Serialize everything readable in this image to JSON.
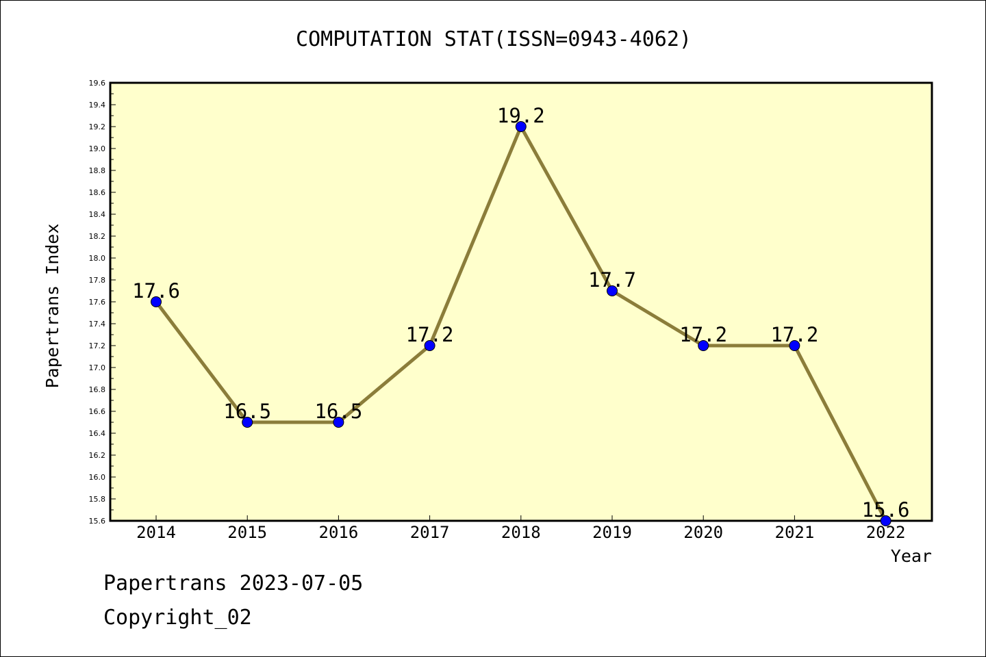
{
  "chart_data": {
    "type": "line",
    "title": "COMPUTATION STAT(ISSN=0943-4062)",
    "xlabel": "Year",
    "ylabel": "Papertrans Index",
    "categories": [
      "2014",
      "2015",
      "2016",
      "2017",
      "2018",
      "2019",
      "2020",
      "2021",
      "2022"
    ],
    "series": [
      {
        "values": [
          17.6,
          16.5,
          16.5,
          17.2,
          19.2,
          17.7,
          17.2,
          17.2,
          15.6
        ]
      }
    ],
    "data_labels": [
      "17.6",
      "16.5",
      "16.5",
      "17.2",
      "19.2",
      "17.7",
      "17.2",
      "17.2",
      "15.6"
    ],
    "ylim": [
      15.6,
      19.6
    ],
    "yticks": [
      "15.6",
      "15.8",
      "16.0",
      "16.2",
      "16.4",
      "16.6",
      "16.8",
      "17.0",
      "17.2",
      "17.4",
      "17.6",
      "17.8",
      "18.0",
      "18.2",
      "18.4",
      "18.6",
      "18.8",
      "19.0",
      "19.2",
      "19.4",
      "19.6"
    ],
    "grid": false,
    "legend": "none",
    "colors": {
      "plot_background": "#ffffcc",
      "line": "#8b7d3a",
      "marker": "#0000ff",
      "frame": "#000000"
    }
  },
  "footer": {
    "line1": "Papertrans 2023-07-05",
    "line2": "Copyright_02"
  }
}
